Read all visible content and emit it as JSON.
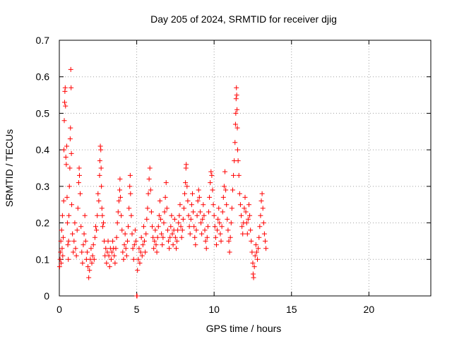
{
  "chart_data": {
    "type": "scatter",
    "title": "Day 205 of 2024, SRMTID for receiver djig",
    "xlabel": "GPS time / hours",
    "ylabel": "SRMTID / TECUs",
    "xlim": [
      0,
      24
    ],
    "ylim": [
      0,
      0.7
    ],
    "xticks": [
      0,
      5,
      10,
      15,
      20
    ],
    "xtick_labels": [
      "0",
      "5",
      "10",
      "15",
      "20"
    ],
    "yticks": [
      0,
      0.1,
      0.2,
      0.3,
      0.4,
      0.5,
      0.6,
      0.7
    ],
    "ytick_labels": [
      "0",
      "0.1",
      "0.2",
      "0.3",
      "0.4",
      "0.5",
      "0.6",
      "0.7"
    ],
    "grid": true,
    "marker": "+",
    "series_color": "#ff0000",
    "series": [
      {
        "name": "SRMTID",
        "points": [
          [
            0.02,
            0.08
          ],
          [
            0.05,
            0.1
          ],
          [
            0.08,
            0.12
          ],
          [
            0.1,
            0.15
          ],
          [
            0.12,
            0.09
          ],
          [
            0.15,
            0.18
          ],
          [
            0.18,
            0.13
          ],
          [
            0.2,
            0.22
          ],
          [
            0.22,
            0.11
          ],
          [
            0.25,
            0.16
          ],
          [
            0.28,
            0.26
          ],
          [
            0.3,
            0.4
          ],
          [
            0.32,
            0.48
          ],
          [
            0.34,
            0.53
          ],
          [
            0.36,
            0.56
          ],
          [
            0.38,
            0.57
          ],
          [
            0.4,
            0.52
          ],
          [
            0.42,
            0.38
          ],
          [
            0.45,
            0.36
          ],
          [
            0.48,
            0.41
          ],
          [
            0.5,
            0.27
          ],
          [
            0.52,
            0.2
          ],
          [
            0.55,
            0.14
          ],
          [
            0.58,
            0.1
          ],
          [
            0.6,
            0.15
          ],
          [
            0.62,
            0.22
          ],
          [
            0.65,
            0.3
          ],
          [
            0.68,
            0.35
          ],
          [
            0.7,
            0.43
          ],
          [
            0.72,
            0.46
          ],
          [
            0.74,
            0.62
          ],
          [
            0.76,
            0.57
          ],
          [
            0.78,
            0.39
          ],
          [
            0.8,
            0.25
          ],
          [
            0.85,
            0.17
          ],
          [
            0.9,
            0.12
          ],
          [
            0.95,
            0.15
          ],
          [
            1.0,
            0.2
          ],
          [
            1.05,
            0.13
          ],
          [
            1.1,
            0.11
          ],
          [
            1.15,
            0.18
          ],
          [
            1.2,
            0.24
          ],
          [
            1.25,
            0.31
          ],
          [
            1.28,
            0.35
          ],
          [
            1.3,
            0.33
          ],
          [
            1.35,
            0.28
          ],
          [
            1.4,
            0.19
          ],
          [
            1.45,
            0.12
          ],
          [
            1.5,
            0.09
          ],
          [
            1.55,
            0.14
          ],
          [
            1.6,
            0.17
          ],
          [
            1.65,
            0.22
          ],
          [
            1.7,
            0.15
          ],
          [
            1.75,
            0.1
          ],
          [
            1.8,
            0.12
          ],
          [
            1.85,
            0.08
          ],
          [
            1.9,
            0.05
          ],
          [
            1.95,
            0.07
          ],
          [
            2.0,
            0.1
          ],
          [
            2.05,
            0.13
          ],
          [
            2.1,
            0.09
          ],
          [
            2.15,
            0.11
          ],
          [
            2.2,
            0.14
          ],
          [
            2.25,
            0.1
          ],
          [
            2.3,
            0.16
          ],
          [
            2.35,
            0.19
          ],
          [
            2.4,
            0.18
          ],
          [
            2.45,
            0.22
          ],
          [
            2.5,
            0.28
          ],
          [
            2.55,
            0.26
          ],
          [
            2.6,
            0.33
          ],
          [
            2.62,
            0.37
          ],
          [
            2.65,
            0.41
          ],
          [
            2.68,
            0.4
          ],
          [
            2.7,
            0.35
          ],
          [
            2.72,
            0.3
          ],
          [
            2.75,
            0.24
          ],
          [
            2.78,
            0.22
          ],
          [
            2.8,
            0.19
          ],
          [
            2.85,
            0.2
          ],
          [
            2.9,
            0.15
          ],
          [
            2.95,
            0.11
          ],
          [
            3.0,
            0.13
          ],
          [
            3.05,
            0.09
          ],
          [
            3.1,
            0.12
          ],
          [
            3.15,
            0.15
          ],
          [
            3.2,
            0.11
          ],
          [
            3.25,
            0.08
          ],
          [
            3.3,
            0.13
          ],
          [
            3.35,
            0.1
          ],
          [
            3.4,
            0.12
          ],
          [
            3.45,
            0.15
          ],
          [
            3.5,
            0.13
          ],
          [
            3.55,
            0.11
          ],
          [
            3.6,
            0.09
          ],
          [
            3.65,
            0.13
          ],
          [
            3.7,
            0.16
          ],
          [
            3.75,
            0.2
          ],
          [
            3.8,
            0.23
          ],
          [
            3.85,
            0.26
          ],
          [
            3.9,
            0.29
          ],
          [
            3.92,
            0.32
          ],
          [
            3.95,
            0.27
          ],
          [
            4.0,
            0.22
          ],
          [
            4.05,
            0.18
          ],
          [
            4.1,
            0.12
          ],
          [
            4.15,
            0.1
          ],
          [
            4.2,
            0.14
          ],
          [
            4.25,
            0.17
          ],
          [
            4.3,
            0.13
          ],
          [
            4.35,
            0.11
          ],
          [
            4.4,
            0.15
          ],
          [
            4.45,
            0.19
          ],
          [
            4.5,
            0.24
          ],
          [
            4.55,
            0.3
          ],
          [
            4.58,
            0.33
          ],
          [
            4.6,
            0.28
          ],
          [
            4.65,
            0.22
          ],
          [
            4.7,
            0.17
          ],
          [
            4.75,
            0.13
          ],
          [
            4.8,
            0.1
          ],
          [
            4.85,
            0.14
          ],
          [
            4.9,
            0.18
          ],
          [
            4.95,
            0.15
          ],
          [
            5.0,
            0.0
          ],
          [
            5.02,
            0.0
          ],
          [
            5.05,
            0.07
          ],
          [
            5.1,
            0.1
          ],
          [
            5.15,
            0.13
          ],
          [
            5.2,
            0.09
          ],
          [
            5.25,
            0.12
          ],
          [
            5.3,
            0.16
          ],
          [
            5.35,
            0.11
          ],
          [
            5.4,
            0.14
          ],
          [
            5.45,
            0.19
          ],
          [
            5.5,
            0.15
          ],
          [
            5.55,
            0.12
          ],
          [
            5.6,
            0.17
          ],
          [
            5.65,
            0.21
          ],
          [
            5.7,
            0.24
          ],
          [
            5.75,
            0.28
          ],
          [
            5.8,
            0.32
          ],
          [
            5.85,
            0.35
          ],
          [
            5.9,
            0.29
          ],
          [
            5.95,
            0.23
          ],
          [
            6.0,
            0.19
          ],
          [
            6.05,
            0.16
          ],
          [
            6.1,
            0.13
          ],
          [
            6.15,
            0.15
          ],
          [
            6.2,
            0.18
          ],
          [
            6.25,
            0.14
          ],
          [
            6.3,
            0.12
          ],
          [
            6.35,
            0.16
          ],
          [
            6.4,
            0.19
          ],
          [
            6.45,
            0.22
          ],
          [
            6.5,
            0.26
          ],
          [
            6.55,
            0.21
          ],
          [
            6.6,
            0.17
          ],
          [
            6.65,
            0.14
          ],
          [
            6.7,
            0.16
          ],
          [
            6.75,
            0.2
          ],
          [
            6.8,
            0.23
          ],
          [
            6.85,
            0.27
          ],
          [
            6.9,
            0.31
          ],
          [
            6.95,
            0.24
          ],
          [
            7.0,
            0.18
          ],
          [
            7.05,
            0.15
          ],
          [
            7.1,
            0.13
          ],
          [
            7.15,
            0.16
          ],
          [
            7.2,
            0.19
          ],
          [
            7.25,
            0.22
          ],
          [
            7.3,
            0.17
          ],
          [
            7.35,
            0.14
          ],
          [
            7.4,
            0.18
          ],
          [
            7.45,
            0.21
          ],
          [
            7.5,
            0.16
          ],
          [
            7.55,
            0.13
          ],
          [
            7.6,
            0.15
          ],
          [
            7.65,
            0.18
          ],
          [
            7.7,
            0.2
          ],
          [
            7.75,
            0.22
          ],
          [
            7.8,
            0.25
          ],
          [
            7.85,
            0.19
          ],
          [
            7.9,
            0.16
          ],
          [
            7.95,
            0.18
          ],
          [
            8.0,
            0.21
          ],
          [
            8.05,
            0.24
          ],
          [
            8.1,
            0.28
          ],
          [
            8.15,
            0.31
          ],
          [
            8.18,
            0.35
          ],
          [
            8.2,
            0.36
          ],
          [
            8.25,
            0.3
          ],
          [
            8.3,
            0.26
          ],
          [
            8.35,
            0.22
          ],
          [
            8.4,
            0.19
          ],
          [
            8.45,
            0.17
          ],
          [
            8.5,
            0.21
          ],
          [
            8.55,
            0.25
          ],
          [
            8.6,
            0.28
          ],
          [
            8.65,
            0.23
          ],
          [
            8.7,
            0.19
          ],
          [
            8.75,
            0.16
          ],
          [
            8.8,
            0.14
          ],
          [
            8.85,
            0.18
          ],
          [
            8.9,
            0.22
          ],
          [
            8.95,
            0.26
          ],
          [
            9.0,
            0.29
          ],
          [
            9.05,
            0.27
          ],
          [
            9.1,
            0.23
          ],
          [
            9.15,
            0.2
          ],
          [
            9.2,
            0.17
          ],
          [
            9.25,
            0.21
          ],
          [
            9.3,
            0.25
          ],
          [
            9.35,
            0.22
          ],
          [
            9.4,
            0.18
          ],
          [
            9.45,
            0.15
          ],
          [
            9.5,
            0.13
          ],
          [
            9.55,
            0.16
          ],
          [
            9.6,
            0.19
          ],
          [
            9.65,
            0.23
          ],
          [
            9.7,
            0.27
          ],
          [
            9.75,
            0.31
          ],
          [
            9.8,
            0.34
          ],
          [
            9.85,
            0.33
          ],
          [
            9.9,
            0.29
          ],
          [
            9.95,
            0.25
          ],
          [
            10.0,
            0.22
          ],
          [
            10.05,
            0.19
          ],
          [
            10.1,
            0.16
          ],
          [
            10.15,
            0.14
          ],
          [
            10.2,
            0.18
          ],
          [
            10.25,
            0.21
          ],
          [
            10.3,
            0.24
          ],
          [
            10.35,
            0.2
          ],
          [
            10.4,
            0.17
          ],
          [
            10.45,
            0.15
          ],
          [
            10.5,
            0.19
          ],
          [
            10.55,
            0.23
          ],
          [
            10.6,
            0.27
          ],
          [
            10.65,
            0.3
          ],
          [
            10.7,
            0.34
          ],
          [
            10.75,
            0.29
          ],
          [
            10.8,
            0.25
          ],
          [
            10.85,
            0.21
          ],
          [
            10.9,
            0.18
          ],
          [
            10.95,
            0.15
          ],
          [
            11.0,
            0.12
          ],
          [
            11.05,
            0.16
          ],
          [
            11.1,
            0.2
          ],
          [
            11.15,
            0.24
          ],
          [
            11.2,
            0.29
          ],
          [
            11.25,
            0.33
          ],
          [
            11.3,
            0.37
          ],
          [
            11.35,
            0.42
          ],
          [
            11.38,
            0.47
          ],
          [
            11.4,
            0.5
          ],
          [
            11.42,
            0.54
          ],
          [
            11.44,
            0.57
          ],
          [
            11.46,
            0.55
          ],
          [
            11.48,
            0.51
          ],
          [
            11.5,
            0.46
          ],
          [
            11.52,
            0.4
          ],
          [
            11.55,
            0.37
          ],
          [
            11.6,
            0.33
          ],
          [
            11.65,
            0.28
          ],
          [
            11.7,
            0.25
          ],
          [
            11.75,
            0.22
          ],
          [
            11.8,
            0.19
          ],
          [
            11.85,
            0.17
          ],
          [
            11.9,
            0.2
          ],
          [
            11.95,
            0.24
          ],
          [
            12.0,
            0.27
          ],
          [
            12.05,
            0.23
          ],
          [
            12.1,
            0.2
          ],
          [
            12.15,
            0.17
          ],
          [
            12.2,
            0.21
          ],
          [
            12.25,
            0.25
          ],
          [
            12.3,
            0.22
          ],
          [
            12.35,
            0.18
          ],
          [
            12.4,
            0.15
          ],
          [
            12.45,
            0.12
          ],
          [
            12.5,
            0.09
          ],
          [
            12.52,
            0.06
          ],
          [
            12.55,
            0.05
          ],
          [
            12.6,
            0.08
          ],
          [
            12.65,
            0.11
          ],
          [
            12.7,
            0.14
          ],
          [
            12.75,
            0.12
          ],
          [
            12.8,
            0.1
          ],
          [
            12.85,
            0.13
          ],
          [
            12.9,
            0.16
          ],
          [
            12.95,
            0.19
          ],
          [
            13.0,
            0.22
          ],
          [
            13.05,
            0.26
          ],
          [
            13.1,
            0.28
          ],
          [
            13.15,
            0.24
          ],
          [
            13.2,
            0.2
          ],
          [
            13.25,
            0.17
          ],
          [
            13.3,
            0.15
          ],
          [
            13.35,
            0.13
          ]
        ]
      }
    ]
  }
}
